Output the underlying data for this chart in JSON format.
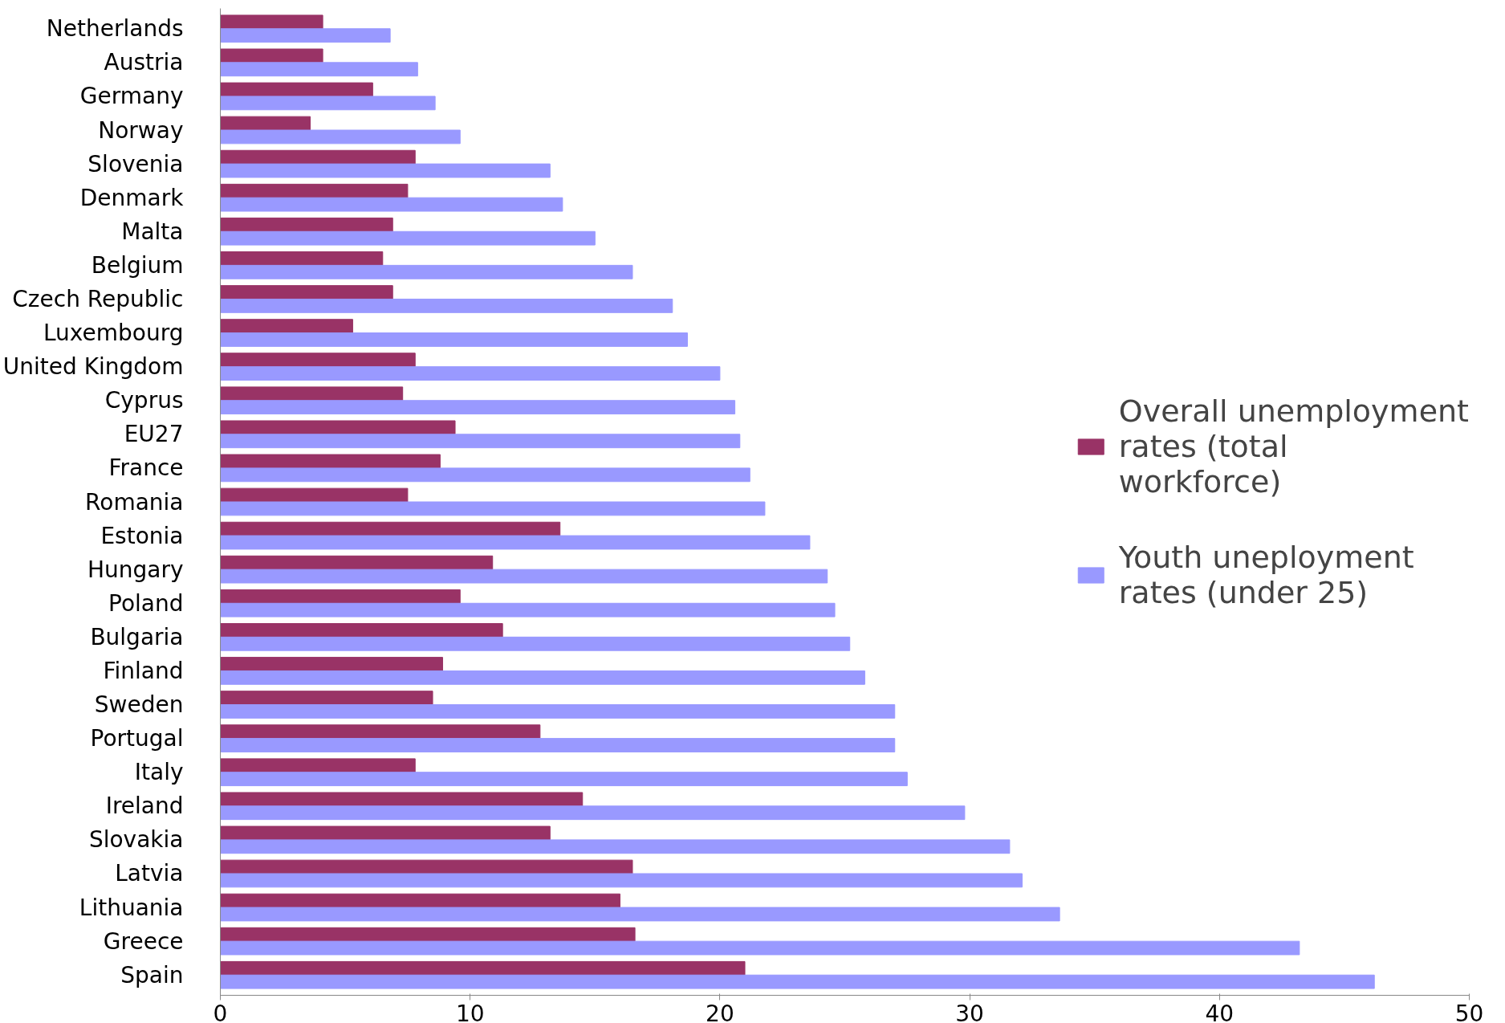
{
  "chart_data": {
    "type": "bar",
    "orientation": "horizontal",
    "categories": [
      "Netherlands",
      "Austria",
      "Germany",
      "Norway",
      "Slovenia",
      "Denmark",
      "Malta",
      "Belgium",
      "Czech Republic",
      "Luxembourg",
      "United Kingdom",
      "Cyprus",
      "EU27",
      "France",
      "Romania",
      "Estonia",
      "Hungary",
      "Poland",
      "Bulgaria",
      "Finland",
      "Sweden",
      "Portugal",
      "Italy",
      "Ireland",
      "Slovakia",
      "Latvia",
      "Lithuania",
      "Greece",
      "Spain"
    ],
    "series": [
      {
        "name": "Overall unemployment rates (total workforce)",
        "color": "#993366",
        "values": [
          4.1,
          4.1,
          6.1,
          3.6,
          7.8,
          7.5,
          6.9,
          6.5,
          6.9,
          5.3,
          7.8,
          7.3,
          9.4,
          8.8,
          7.5,
          13.6,
          10.9,
          9.6,
          11.3,
          8.9,
          8.5,
          12.8,
          7.8,
          14.5,
          13.2,
          16.5,
          16.0,
          16.6,
          21.0
        ]
      },
      {
        "name": "Youth uneployment rates (under 25)",
        "color": "#9999ff",
        "values": [
          6.8,
          7.9,
          8.6,
          9.6,
          13.2,
          13.7,
          15.0,
          16.5,
          18.1,
          18.7,
          20.0,
          20.6,
          20.8,
          21.2,
          21.8,
          23.6,
          24.3,
          24.6,
          25.2,
          25.8,
          27.0,
          27.0,
          27.5,
          29.8,
          31.6,
          32.1,
          33.6,
          43.2,
          46.2
        ]
      }
    ],
    "xlim": [
      0,
      50
    ],
    "xticks": [
      0,
      10,
      20,
      30,
      40,
      50
    ],
    "grid": false,
    "legend": "right"
  }
}
